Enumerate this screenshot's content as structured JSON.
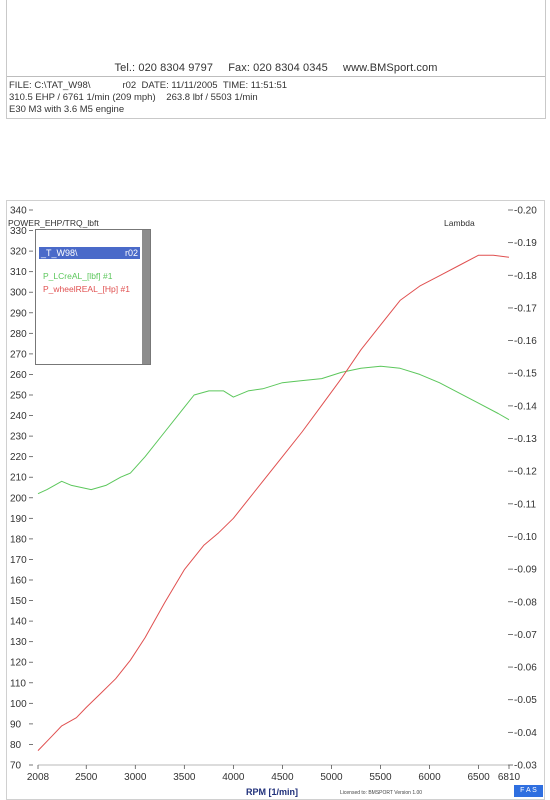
{
  "header": {
    "tel": "Tel.: 020 8304 9797",
    "fax": "Fax: 020 8304 0345",
    "website": "www.BMSport.com",
    "file_label": "FILE: C:\\TAT_W98\\",
    "file_suffix": "r02",
    "date": "DATE: 11/11/2005",
    "time": "TIME: 11:51:51",
    "power_line": "310.5 EHP / 6761 1/min (209 mph)",
    "torque_line": "263.8 lbf / 5503 1/min",
    "car_line": "E30 M3 with 3.6 M5 engine"
  },
  "legend": {
    "title_left": "_T_W98\\",
    "title_right": "r02",
    "items": [
      {
        "label": "P_LCreAL_[lbf] #1",
        "color": "#5cc75c"
      },
      {
        "label": "P_wheelREAL_[Hp] #1",
        "color": "#e05050"
      }
    ]
  },
  "footer": {
    "small_text": "Licensed to: BMSPORT   Version 1.00",
    "button_label": "F A S"
  },
  "chart_data": {
    "type": "line",
    "ylabel": "POWER_EHP/TRQ_lbft",
    "ylabel2": "Lambda",
    "xlabel": "RPM  [1/min]",
    "xlim": [
      2008,
      6810
    ],
    "ylim": [
      70,
      340
    ],
    "ylim2": [
      0.03,
      0.2
    ],
    "x_ticks": [
      "2008",
      "2500",
      "3000",
      "3500",
      "4000",
      "4500",
      "5000",
      "5500",
      "6000",
      "6500",
      "6810"
    ],
    "x_tick_values": [
      2008,
      2500,
      3000,
      3500,
      4000,
      4500,
      5000,
      5500,
      6000,
      6500,
      6810
    ],
    "y_ticks": [
      "340",
      "330",
      "320",
      "310",
      "300",
      "290",
      "280",
      "270",
      "260",
      "250",
      "240",
      "230",
      "220",
      "210",
      "200",
      "190",
      "180",
      "170",
      "160",
      "150",
      "140",
      "130",
      "120",
      "110",
      "100",
      "90",
      "80",
      "70"
    ],
    "y2_ticks": [
      "0.20",
      "0.19",
      "0.18",
      "0.17",
      "0.16",
      "0.15",
      "0.14",
      "0.13",
      "0.12",
      "0.11",
      "0.10",
      "0.09",
      "0.08",
      "0.07",
      "0.06",
      "0.05",
      "0.04",
      "0.03"
    ],
    "series": [
      {
        "name": "P_LCreAL_[lbf] #1",
        "color": "#5cc75c",
        "x": [
          2008,
          2100,
          2250,
          2350,
          2450,
          2550,
          2700,
          2850,
          2950,
          3100,
          3300,
          3500,
          3600,
          3750,
          3900,
          4000,
          4150,
          4300,
          4500,
          4700,
          4900,
          5100,
          5300,
          5500,
          5700,
          5900,
          6100,
          6300,
          6500,
          6700,
          6810
        ],
        "y": [
          202,
          204,
          208,
          206,
          205,
          204,
          206,
          210,
          212,
          220,
          232,
          244,
          250,
          252,
          252,
          249,
          252,
          253,
          256,
          257,
          258,
          261,
          263,
          264,
          263,
          260,
          256,
          251,
          246,
          241,
          238
        ]
      },
      {
        "name": "P_wheelREAL_[Hp] #1",
        "color": "#e05050",
        "x": [
          2008,
          2150,
          2250,
          2400,
          2500,
          2650,
          2800,
          2950,
          3100,
          3300,
          3500,
          3700,
          3850,
          4000,
          4150,
          4300,
          4500,
          4700,
          4900,
          5100,
          5300,
          5500,
          5700,
          5900,
          6100,
          6300,
          6500,
          6650,
          6810
        ],
        "y": [
          77,
          84,
          89,
          93,
          98,
          105,
          112,
          121,
          132,
          149,
          165,
          177,
          183,
          190,
          199,
          208,
          220,
          232,
          245,
          258,
          272,
          284,
          296,
          303,
          308,
          313,
          318,
          318,
          317
        ]
      }
    ]
  }
}
